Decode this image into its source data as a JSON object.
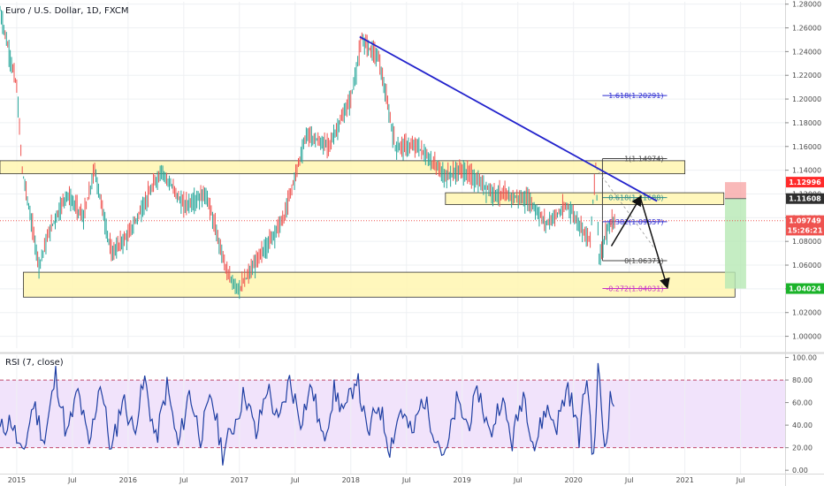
{
  "chart_data": [
    {
      "type": "candlestick",
      "title": "Euro / U.S. Dollar, 1D, FXCM",
      "x_ticks": [
        "2015",
        "Jul",
        "2016",
        "Jul",
        "2017",
        "Jul",
        "2018",
        "Jul",
        "2019",
        "Jul",
        "2020",
        "Jul",
        "2021",
        "Jul"
      ],
      "y_ticks": [
        "1.28000",
        "1.26000",
        "1.24000",
        "1.22000",
        "1.20000",
        "1.18000",
        "1.16000",
        "1.14000",
        "1.12000",
        "1.10000",
        "1.08000",
        "1.06000",
        "1.04000",
        "1.02000",
        "1.00000"
      ],
      "ylim": [
        0.99,
        1.282
      ],
      "price_path": [
        {
          "x": 2014.85,
          "y": 1.275
        },
        {
          "x": 2015.0,
          "y": 1.21
        },
        {
          "x": 2015.05,
          "y": 1.14
        },
        {
          "x": 2015.2,
          "y": 1.06
        },
        {
          "x": 2015.3,
          "y": 1.09
        },
        {
          "x": 2015.45,
          "y": 1.12
        },
        {
          "x": 2015.6,
          "y": 1.1
        },
        {
          "x": 2015.7,
          "y": 1.14
        },
        {
          "x": 2015.85,
          "y": 1.07
        },
        {
          "x": 2016.0,
          "y": 1.085
        },
        {
          "x": 2016.3,
          "y": 1.14
        },
        {
          "x": 2016.5,
          "y": 1.11
        },
        {
          "x": 2016.7,
          "y": 1.12
        },
        {
          "x": 2016.9,
          "y": 1.05
        },
        {
          "x": 2017.0,
          "y": 1.04
        },
        {
          "x": 2017.2,
          "y": 1.07
        },
        {
          "x": 2017.4,
          "y": 1.1
        },
        {
          "x": 2017.6,
          "y": 1.17
        },
        {
          "x": 2017.8,
          "y": 1.16
        },
        {
          "x": 2018.0,
          "y": 1.2
        },
        {
          "x": 2018.1,
          "y": 1.25
        },
        {
          "x": 2018.25,
          "y": 1.235
        },
        {
          "x": 2018.4,
          "y": 1.16
        },
        {
          "x": 2018.6,
          "y": 1.16
        },
        {
          "x": 2018.85,
          "y": 1.135
        },
        {
          "x": 2019.0,
          "y": 1.14
        },
        {
          "x": 2019.3,
          "y": 1.12
        },
        {
          "x": 2019.6,
          "y": 1.115
        },
        {
          "x": 2019.75,
          "y": 1.095
        },
        {
          "x": 2019.95,
          "y": 1.11
        },
        {
          "x": 2020.15,
          "y": 1.08
        },
        {
          "x": 2020.2,
          "y": 1.145
        },
        {
          "x": 2020.23,
          "y": 1.065
        },
        {
          "x": 2020.3,
          "y": 1.09
        },
        {
          "x": 2020.38,
          "y": 1.0975
        }
      ],
      "resistance_zones": [
        {
          "x": [
            2014.85,
            2021.0
          ],
          "y": [
            1.137,
            1.148
          ]
        },
        {
          "x": [
            2018.85,
            2021.35
          ],
          "y": [
            1.111,
            1.121
          ]
        },
        {
          "x": [
            2015.06,
            2021.45
          ],
          "y": [
            1.033,
            1.054
          ]
        }
      ],
      "trendline": {
        "x": [
          2018.08,
          2020.75
        ],
        "y": [
          1.2525,
          1.114
        ]
      },
      "fibonacci": [
        {
          "label": "1.618(1.20291)",
          "value": 1.20291,
          "color": "#2b2bd0"
        },
        {
          "label": "1(1.14974)",
          "value": 1.14974,
          "color": "#444444"
        },
        {
          "label": "0.618(1.11688)",
          "value": 1.11688,
          "color": "#2a8a8a"
        },
        {
          "label": "0.382(1.09657)",
          "value": 1.09657,
          "color": "#2b2bd0"
        },
        {
          "label": "0(1.06371)",
          "value": 1.06371,
          "color": "#444444"
        },
        {
          "label": "-0.272(1.04031)",
          "value": 1.04031,
          "color": "#c62fc6"
        }
      ],
      "price_tags": [
        {
          "label": "1.12996",
          "value": 1.12996,
          "bg": "#ff2a2a",
          "fg": "#ffffff"
        },
        {
          "label": "1.11608",
          "value": 1.11608,
          "bg": "#2f2f2f",
          "fg": "#ffffff"
        },
        {
          "label": "1.09749",
          "value": 1.09749,
          "bg": "#ef5350",
          "fg": "#ffffff"
        },
        {
          "label": "15:26:21",
          "value": 1.0895,
          "bg": "#ef5350",
          "fg": "#ffffff"
        },
        {
          "label": "1.04024",
          "value": 1.04024,
          "bg": "#1bb32a",
          "fg": "#ffffff"
        }
      ],
      "current_price": 1.09749,
      "position": {
        "entry": 1.11608,
        "stop": 1.12996,
        "target": 1.04024
      }
    },
    {
      "type": "line",
      "title": "RSI (7, close)",
      "y_ticks": [
        "100.00",
        "80.00",
        "60.00",
        "40.00",
        "20.00",
        "0.00"
      ],
      "ylim": [
        -3,
        102
      ],
      "band": [
        20,
        80
      ],
      "rsi_path": [
        {
          "x": 2014.85,
          "y": 35
        },
        {
          "x": 2014.95,
          "y": 45
        },
        {
          "x": 2015.05,
          "y": 10
        },
        {
          "x": 2015.15,
          "y": 60
        },
        {
          "x": 2015.25,
          "y": 25
        },
        {
          "x": 2015.35,
          "y": 85
        },
        {
          "x": 2015.45,
          "y": 30
        },
        {
          "x": 2015.55,
          "y": 70
        },
        {
          "x": 2015.65,
          "y": 20
        },
        {
          "x": 2015.75,
          "y": 80
        },
        {
          "x": 2015.85,
          "y": 15
        },
        {
          "x": 2015.95,
          "y": 65
        },
        {
          "x": 2016.05,
          "y": 35
        },
        {
          "x": 2016.15,
          "y": 80
        },
        {
          "x": 2016.25,
          "y": 25
        },
        {
          "x": 2016.35,
          "y": 75
        },
        {
          "x": 2016.45,
          "y": 20
        },
        {
          "x": 2016.55,
          "y": 70
        },
        {
          "x": 2016.65,
          "y": 30
        },
        {
          "x": 2016.75,
          "y": 65
        },
        {
          "x": 2016.85,
          "y": 15
        },
        {
          "x": 2016.95,
          "y": 40
        },
        {
          "x": 2017.05,
          "y": 70
        },
        {
          "x": 2017.15,
          "y": 30
        },
        {
          "x": 2017.25,
          "y": 75
        },
        {
          "x": 2017.35,
          "y": 40
        },
        {
          "x": 2017.45,
          "y": 80
        },
        {
          "x": 2017.55,
          "y": 45
        },
        {
          "x": 2017.65,
          "y": 75
        },
        {
          "x": 2017.75,
          "y": 25
        },
        {
          "x": 2017.85,
          "y": 70
        },
        {
          "x": 2017.95,
          "y": 50
        },
        {
          "x": 2018.05,
          "y": 85
        },
        {
          "x": 2018.15,
          "y": 30
        },
        {
          "x": 2018.25,
          "y": 60
        },
        {
          "x": 2018.35,
          "y": 20
        },
        {
          "x": 2018.45,
          "y": 55
        },
        {
          "x": 2018.55,
          "y": 30
        },
        {
          "x": 2018.65,
          "y": 65
        },
        {
          "x": 2018.75,
          "y": 35
        },
        {
          "x": 2018.85,
          "y": 10
        },
        {
          "x": 2018.95,
          "y": 60
        },
        {
          "x": 2019.05,
          "y": 40
        },
        {
          "x": 2019.15,
          "y": 70
        },
        {
          "x": 2019.25,
          "y": 30
        },
        {
          "x": 2019.35,
          "y": 65
        },
        {
          "x": 2019.45,
          "y": 25
        },
        {
          "x": 2019.55,
          "y": 70
        },
        {
          "x": 2019.65,
          "y": 20
        },
        {
          "x": 2019.75,
          "y": 55
        },
        {
          "x": 2019.85,
          "y": 40
        },
        {
          "x": 2019.95,
          "y": 75
        },
        {
          "x": 2020.05,
          "y": 30
        },
        {
          "x": 2020.12,
          "y": 85
        },
        {
          "x": 2020.18,
          "y": 5
        },
        {
          "x": 2020.22,
          "y": 92
        },
        {
          "x": 2020.28,
          "y": 20
        },
        {
          "x": 2020.33,
          "y": 62
        },
        {
          "x": 2020.38,
          "y": 60
        }
      ]
    }
  ]
}
